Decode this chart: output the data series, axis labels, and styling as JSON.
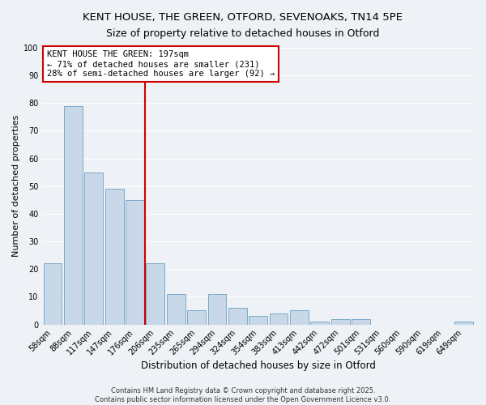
{
  "title": "KENT HOUSE, THE GREEN, OTFORD, SEVENOAKS, TN14 5PE",
  "subtitle": "Size of property relative to detached houses in Otford",
  "xlabel": "Distribution of detached houses by size in Otford",
  "ylabel": "Number of detached properties",
  "bar_labels": [
    "58sqm",
    "88sqm",
    "117sqm",
    "147sqm",
    "176sqm",
    "206sqm",
    "235sqm",
    "265sqm",
    "294sqm",
    "324sqm",
    "354sqm",
    "383sqm",
    "413sqm",
    "442sqm",
    "472sqm",
    "501sqm",
    "531sqm",
    "560sqm",
    "590sqm",
    "619sqm",
    "649sqm"
  ],
  "bar_values": [
    22,
    79,
    55,
    49,
    45,
    22,
    11,
    5,
    11,
    6,
    3,
    4,
    5,
    1,
    2,
    2,
    0,
    0,
    0,
    0,
    1
  ],
  "bar_color": "#c8d8e8",
  "bar_edgecolor": "#7aaac8",
  "vline_color": "#cc0000",
  "vline_x_index": 5,
  "annotation_box_text": "KENT HOUSE THE GREEN: 197sqm\n← 71% of detached houses are smaller (231)\n28% of semi-detached houses are larger (92) →",
  "box_edgecolor": "#cc0000",
  "ylim": [
    0,
    100
  ],
  "yticks": [
    0,
    10,
    20,
    30,
    40,
    50,
    60,
    70,
    80,
    90,
    100
  ],
  "background_color": "#eef2f7",
  "grid_color": "#ffffff",
  "footer1": "Contains HM Land Registry data © Crown copyright and database right 2025.",
  "footer2": "Contains public sector information licensed under the Open Government Licence v3.0.",
  "title_fontsize": 9.5,
  "subtitle_fontsize": 9,
  "xlabel_fontsize": 8.5,
  "ylabel_fontsize": 8,
  "tick_fontsize": 7,
  "annotation_fontsize": 7.5,
  "footer_fontsize": 6
}
